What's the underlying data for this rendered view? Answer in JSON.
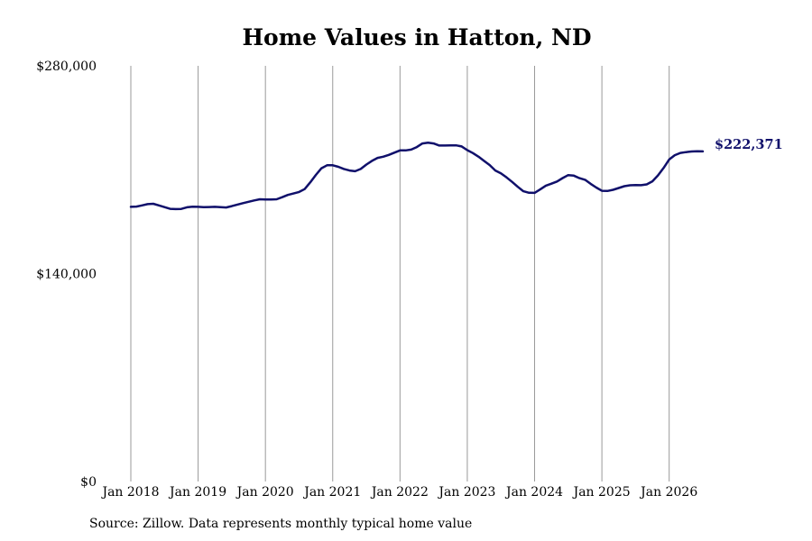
{
  "chart_data": {
    "type": "line",
    "title": "Home Values in Hatton, ND",
    "xlabel": "",
    "ylabel": "",
    "x_tick_labels": [
      "Jan 2018",
      "Jan 2019",
      "Jan 2020",
      "Jan 2021",
      "Jan 2022",
      "Jan 2023",
      "Jan 2024",
      "Jan 2025",
      "Jan 2026"
    ],
    "y_tick_labels": [
      "$280,000",
      "$140,000",
      "$0"
    ],
    "y_ticks": [
      280000,
      140000,
      0
    ],
    "ylim": [
      0,
      280000
    ],
    "xlim": [
      "2018-01",
      "2026-07"
    ],
    "grid": "vertical lines at January ticks",
    "line_color": "#10106b",
    "end_label": "$222,371",
    "series": [
      {
        "x": [
          "2018-01",
          "2018-02",
          "2018-03",
          "2018-04",
          "2018-05",
          "2018-06",
          "2018-07",
          "2018-08",
          "2018-09",
          "2018-10",
          "2018-11",
          "2018-12",
          "2019-01",
          "2019-02",
          "2019-03",
          "2019-04",
          "2019-05",
          "2019-06",
          "2019-07",
          "2019-08",
          "2019-09",
          "2019-10",
          "2019-11",
          "2019-12",
          "2020-01",
          "2020-02",
          "2020-03",
          "2020-04",
          "2020-05",
          "2020-06",
          "2020-07",
          "2020-08",
          "2020-09",
          "2020-10",
          "2020-11",
          "2020-12",
          "2021-01",
          "2021-02",
          "2021-03",
          "2021-04",
          "2021-05",
          "2021-06",
          "2021-07",
          "2021-08",
          "2021-09",
          "2021-10",
          "2021-11",
          "2021-12",
          "2022-01",
          "2022-02",
          "2022-03",
          "2022-04",
          "2022-05",
          "2022-06",
          "2022-07",
          "2022-08",
          "2022-09",
          "2022-10",
          "2022-11",
          "2022-12",
          "2023-01",
          "2023-02",
          "2023-03",
          "2023-04",
          "2023-05",
          "2023-06",
          "2023-07",
          "2023-08",
          "2023-09",
          "2023-10",
          "2023-11",
          "2023-12",
          "2024-01",
          "2024-02",
          "2024-03",
          "2024-04",
          "2024-05",
          "2024-06",
          "2024-07",
          "2024-08",
          "2024-09",
          "2024-10",
          "2024-11",
          "2024-12",
          "2025-01",
          "2025-02",
          "2025-03",
          "2025-04",
          "2025-05",
          "2025-06",
          "2025-07",
          "2025-08",
          "2025-09",
          "2025-10",
          "2025-11",
          "2025-12",
          "2026-01",
          "2026-02",
          "2026-03",
          "2026-04",
          "2026-05",
          "2026-06",
          "2026-07"
        ],
        "values": [
          185000,
          185200,
          186000,
          186800,
          187100,
          186000,
          184800,
          183700,
          183500,
          183600,
          184700,
          185100,
          185000,
          184800,
          184900,
          185000,
          184800,
          184600,
          185500,
          186500,
          187500,
          188400,
          189300,
          190100,
          190000,
          190000,
          190100,
          191500,
          193000,
          194000,
          195000,
          197000,
          201500,
          206500,
          211000,
          213000,
          213000,
          212000,
          210500,
          209500,
          209000,
          210500,
          213500,
          216000,
          218000,
          218800,
          220000,
          221500,
          223000,
          223000,
          223600,
          225300,
          227700,
          228200,
          227700,
          226300,
          226300,
          226400,
          226400,
          225700,
          223200,
          221200,
          218800,
          215900,
          213100,
          209500,
          207600,
          204800,
          201800,
          198500,
          195500,
          194500,
          194400,
          196700,
          199300,
          200600,
          202100,
          204400,
          206400,
          206000,
          204300,
          203200,
          200500,
          198000,
          195800,
          195700,
          196500,
          197700,
          198900,
          199500,
          199700,
          199600,
          200100,
          202200,
          206200,
          211200,
          216900,
          219800,
          221300,
          221900,
          222300,
          222500,
          222371
        ]
      }
    ]
  },
  "source_note": "Source: Zillow. Data represents monthly typical home value"
}
